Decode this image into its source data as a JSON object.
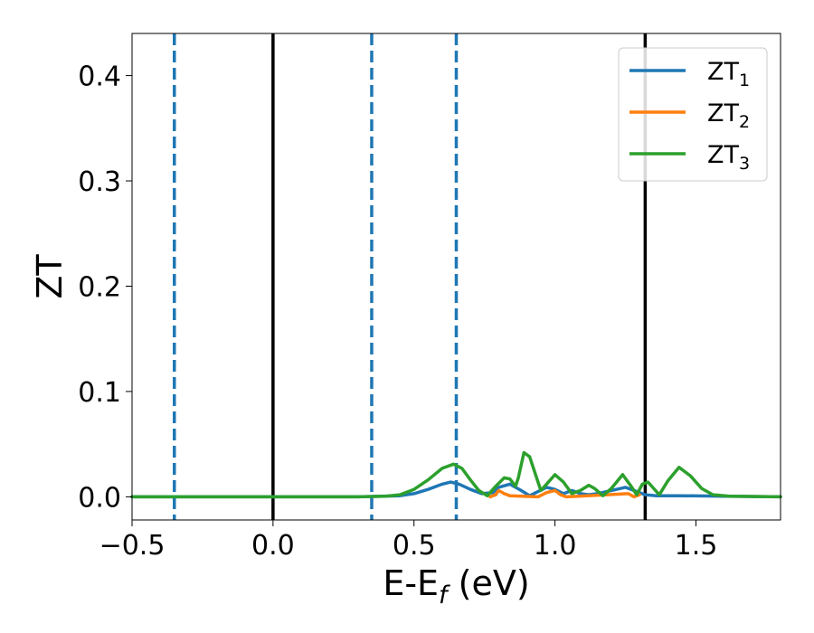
{
  "chart_data": {
    "type": "line",
    "xlabel": "E-E",
    "xlabel_sub": "f",
    "xlabel_unit": " (eV)",
    "ylabel": "ZT",
    "xlim": [
      -0.5,
      1.8
    ],
    "ylim": [
      -0.022,
      0.44
    ],
    "xticks": [
      -0.5,
      0.0,
      0.5,
      1.0,
      1.5
    ],
    "xtick_labels": [
      "−0.5",
      "0.0",
      "0.5",
      "1.0",
      "1.5"
    ],
    "yticks": [
      0.0,
      0.1,
      0.2,
      0.3,
      0.4
    ],
    "ytick_labels": [
      "0.0",
      "0.1",
      "0.2",
      "0.3",
      "0.4"
    ],
    "grid": false,
    "legend": {
      "position": "top-right"
    },
    "vlines_solid": [
      0.0,
      1.32
    ],
    "vlines_dashed": [
      -0.35,
      0.35,
      0.65
    ],
    "colors": {
      "ZT1": "#1f77b4",
      "ZT2": "#ff7f0e",
      "ZT3": "#2ca02c",
      "solid_line": "#000000",
      "dashed_line": "#1f77b4"
    },
    "series": [
      {
        "name": "ZT",
        "sub": "1",
        "color": "#1f77b4",
        "points": [
          [
            -0.5,
            0
          ],
          [
            0.3,
            0
          ],
          [
            0.45,
            0.001
          ],
          [
            0.5,
            0.003
          ],
          [
            0.55,
            0.007
          ],
          [
            0.6,
            0.012
          ],
          [
            0.63,
            0.014
          ],
          [
            0.66,
            0.012
          ],
          [
            0.7,
            0.007
          ],
          [
            0.74,
            0.003
          ],
          [
            0.78,
            0.004
          ],
          [
            0.8,
            0.009
          ],
          [
            0.84,
            0.012
          ],
          [
            0.88,
            0.006
          ],
          [
            0.91,
            0.001
          ],
          [
            0.94,
            0.005
          ],
          [
            0.97,
            0.009
          ],
          [
            1.0,
            0.007
          ],
          [
            1.03,
            0.003
          ],
          [
            1.06,
            0.006
          ],
          [
            1.09,
            0.003
          ],
          [
            1.12,
            0.002
          ],
          [
            1.15,
            0.003
          ],
          [
            1.2,
            0.006
          ],
          [
            1.25,
            0.009
          ],
          [
            1.28,
            0.006
          ],
          [
            1.32,
            0.002
          ],
          [
            1.36,
            0.001
          ],
          [
            1.45,
            0.001
          ],
          [
            1.6,
            0.0005
          ],
          [
            1.8,
            0
          ]
        ]
      },
      {
        "name": "ZT",
        "sub": "2",
        "color": "#ff7f0e",
        "points": [
          [
            0.77,
            0.0
          ],
          [
            0.79,
            0.002
          ],
          [
            0.8,
            0.006
          ],
          [
            0.82,
            0.003
          ],
          [
            0.84,
            0.001
          ],
          [
            0.94,
            0.0
          ],
          [
            0.97,
            0.004
          ],
          [
            1.0,
            0.006
          ],
          [
            1.02,
            0.002
          ],
          [
            1.04,
            0.0
          ],
          [
            1.26,
            0.003
          ],
          [
            1.28,
            0.0
          ],
          [
            1.3,
            0.002
          ]
        ]
      },
      {
        "name": "ZT",
        "sub": "3",
        "color": "#2ca02c",
        "points": [
          [
            -0.5,
            0
          ],
          [
            0.3,
            0
          ],
          [
            0.4,
            0.0005
          ],
          [
            0.45,
            0.002
          ],
          [
            0.5,
            0.007
          ],
          [
            0.55,
            0.016
          ],
          [
            0.6,
            0.027
          ],
          [
            0.64,
            0.031
          ],
          [
            0.67,
            0.027
          ],
          [
            0.7,
            0.016
          ],
          [
            0.73,
            0.006
          ],
          [
            0.76,
            0.001
          ],
          [
            0.79,
            0.01
          ],
          [
            0.82,
            0.018
          ],
          [
            0.84,
            0.017
          ],
          [
            0.86,
            0.01
          ],
          [
            0.87,
            0.018
          ],
          [
            0.89,
            0.042
          ],
          [
            0.91,
            0.038
          ],
          [
            0.93,
            0.022
          ],
          [
            0.95,
            0.006
          ],
          [
            0.97,
            0.012
          ],
          [
            1.0,
            0.021
          ],
          [
            1.03,
            0.014
          ],
          [
            1.06,
            0.003
          ],
          [
            1.09,
            0.006
          ],
          [
            1.12,
            0.011
          ],
          [
            1.14,
            0.008
          ],
          [
            1.17,
            0.001
          ],
          [
            1.2,
            0.008
          ],
          [
            1.24,
            0.021
          ],
          [
            1.27,
            0.01
          ],
          [
            1.29,
            0.002
          ],
          [
            1.31,
            0.012
          ],
          [
            1.33,
            0.014
          ],
          [
            1.35,
            0.008
          ],
          [
            1.37,
            0.002
          ],
          [
            1.4,
            0.015
          ],
          [
            1.44,
            0.028
          ],
          [
            1.48,
            0.02
          ],
          [
            1.52,
            0.008
          ],
          [
            1.56,
            0.002
          ],
          [
            1.62,
            0.0005
          ],
          [
            1.8,
            0
          ]
        ]
      }
    ]
  }
}
